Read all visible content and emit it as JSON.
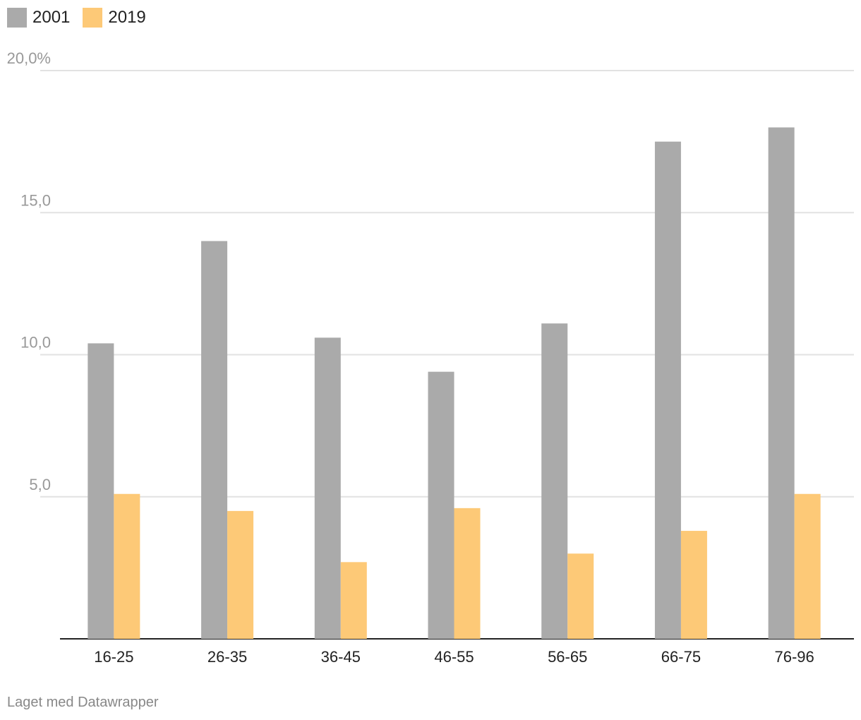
{
  "chart_data": {
    "type": "bar",
    "categories": [
      "16-25",
      "26-35",
      "36-45",
      "46-55",
      "56-65",
      "66-75",
      "76-96"
    ],
    "series": [
      {
        "name": "2001",
        "color": "#aaaaaa",
        "values": [
          10.4,
          14.0,
          10.6,
          9.4,
          11.1,
          17.5,
          18.0
        ]
      },
      {
        "name": "2019",
        "color": "#fdc977",
        "values": [
          5.1,
          4.5,
          2.7,
          4.6,
          3.0,
          3.8,
          5.1
        ]
      }
    ],
    "y_ticks": [
      {
        "value": 5,
        "label": "5,0"
      },
      {
        "value": 10,
        "label": "10,0"
      },
      {
        "value": 15,
        "label": "15,0"
      },
      {
        "value": 20,
        "label": "20,0%"
      }
    ],
    "ylim": [
      0,
      20
    ],
    "grid": true,
    "legend_position": "top-left"
  },
  "footer": {
    "credit": "Laget med Datawrapper"
  }
}
